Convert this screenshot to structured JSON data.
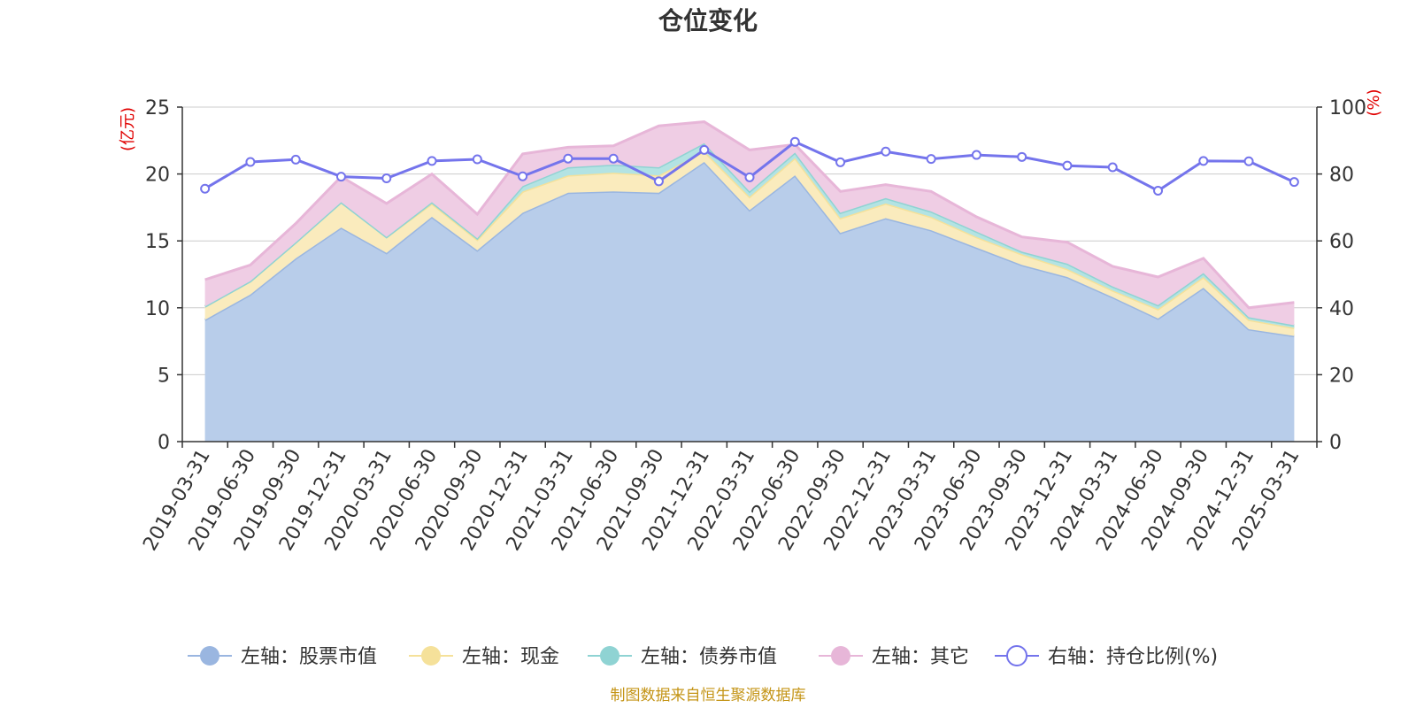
{
  "chart_data": {
    "type": "area",
    "title": "仓位变化",
    "left_axis_unit": "(亿元)",
    "right_axis_unit": "(%)",
    "left_ylim": [
      0,
      25
    ],
    "left_yticks": [
      0,
      5,
      10,
      15,
      20,
      25
    ],
    "right_ylim": [
      0,
      100
    ],
    "right_yticks": [
      0,
      20,
      40,
      60,
      80,
      100
    ],
    "categories": [
      "2019-03-31",
      "2019-06-30",
      "2019-09-30",
      "2019-12-31",
      "2020-03-31",
      "2020-06-30",
      "2020-09-30",
      "2020-12-31",
      "2021-03-31",
      "2021-06-30",
      "2021-09-30",
      "2021-12-31",
      "2022-03-31",
      "2022-06-30",
      "2022-09-30",
      "2022-12-31",
      "2023-03-31",
      "2023-06-30",
      "2023-09-30",
      "2023-12-31",
      "2024-03-31",
      "2024-06-30",
      "2024-09-30",
      "2024-12-31",
      "2025-03-31"
    ],
    "stacked_series": [
      {
        "name": "左轴：股票市值",
        "color": "#9ab6e0",
        "fill": "#b8cdea",
        "values": [
          9.1,
          11.0,
          13.7,
          16.0,
          14.1,
          16.8,
          14.3,
          17.1,
          18.6,
          18.7,
          18.6,
          20.9,
          17.3,
          19.9,
          15.6,
          16.7,
          15.8,
          14.5,
          13.2,
          12.3,
          10.8,
          9.2,
          11.5,
          8.4,
          7.9
        ]
      },
      {
        "name": "左轴：现金",
        "color": "#f5e19a",
        "fill": "#faebbd",
        "values": [
          1.0,
          1.0,
          1.2,
          1.9,
          1.2,
          1.0,
          0.8,
          1.6,
          1.3,
          1.4,
          1.3,
          0.8,
          1.0,
          1.3,
          1.1,
          1.1,
          1.0,
          0.8,
          0.8,
          0.6,
          0.5,
          0.7,
          0.8,
          0.7,
          0.6
        ]
      },
      {
        "name": "左轴：债券市值",
        "color": "#8fd3d3",
        "fill": "#b3e3e3",
        "values": [
          0.0,
          0.0,
          0.0,
          0.0,
          0.0,
          0.1,
          0.1,
          0.4,
          0.6,
          0.6,
          0.6,
          0.6,
          0.4,
          0.4,
          0.4,
          0.4,
          0.4,
          0.4,
          0.2,
          0.4,
          0.3,
          0.3,
          0.3,
          0.2,
          0.2
        ]
      },
      {
        "name": "左轴：其它",
        "color": "#e7b6d8",
        "fill": "#efcde4",
        "values": [
          2.0,
          1.2,
          1.4,
          1.9,
          2.5,
          2.1,
          1.8,
          2.4,
          1.5,
          1.4,
          3.1,
          1.6,
          3.1,
          0.6,
          1.6,
          1.0,
          1.5,
          1.1,
          1.1,
          1.6,
          1.5,
          2.1,
          1.1,
          0.7,
          1.7
        ]
      }
    ],
    "line_series": {
      "name": "右轴：持仓比例(%)",
      "color": "#7474ec",
      "values": [
        75.6,
        83.6,
        84.3,
        79.2,
        78.7,
        83.9,
        84.4,
        79.3,
        84.6,
        84.6,
        77.8,
        87.2,
        79.0,
        89.6,
        83.5,
        86.7,
        84.5,
        85.7,
        85.1,
        82.5,
        82.0,
        75.0,
        83.9,
        83.8,
        77.6
      ]
    },
    "grid": true,
    "legend_position": "bottom"
  },
  "source_note": "制图数据来自恒生聚源数据库"
}
